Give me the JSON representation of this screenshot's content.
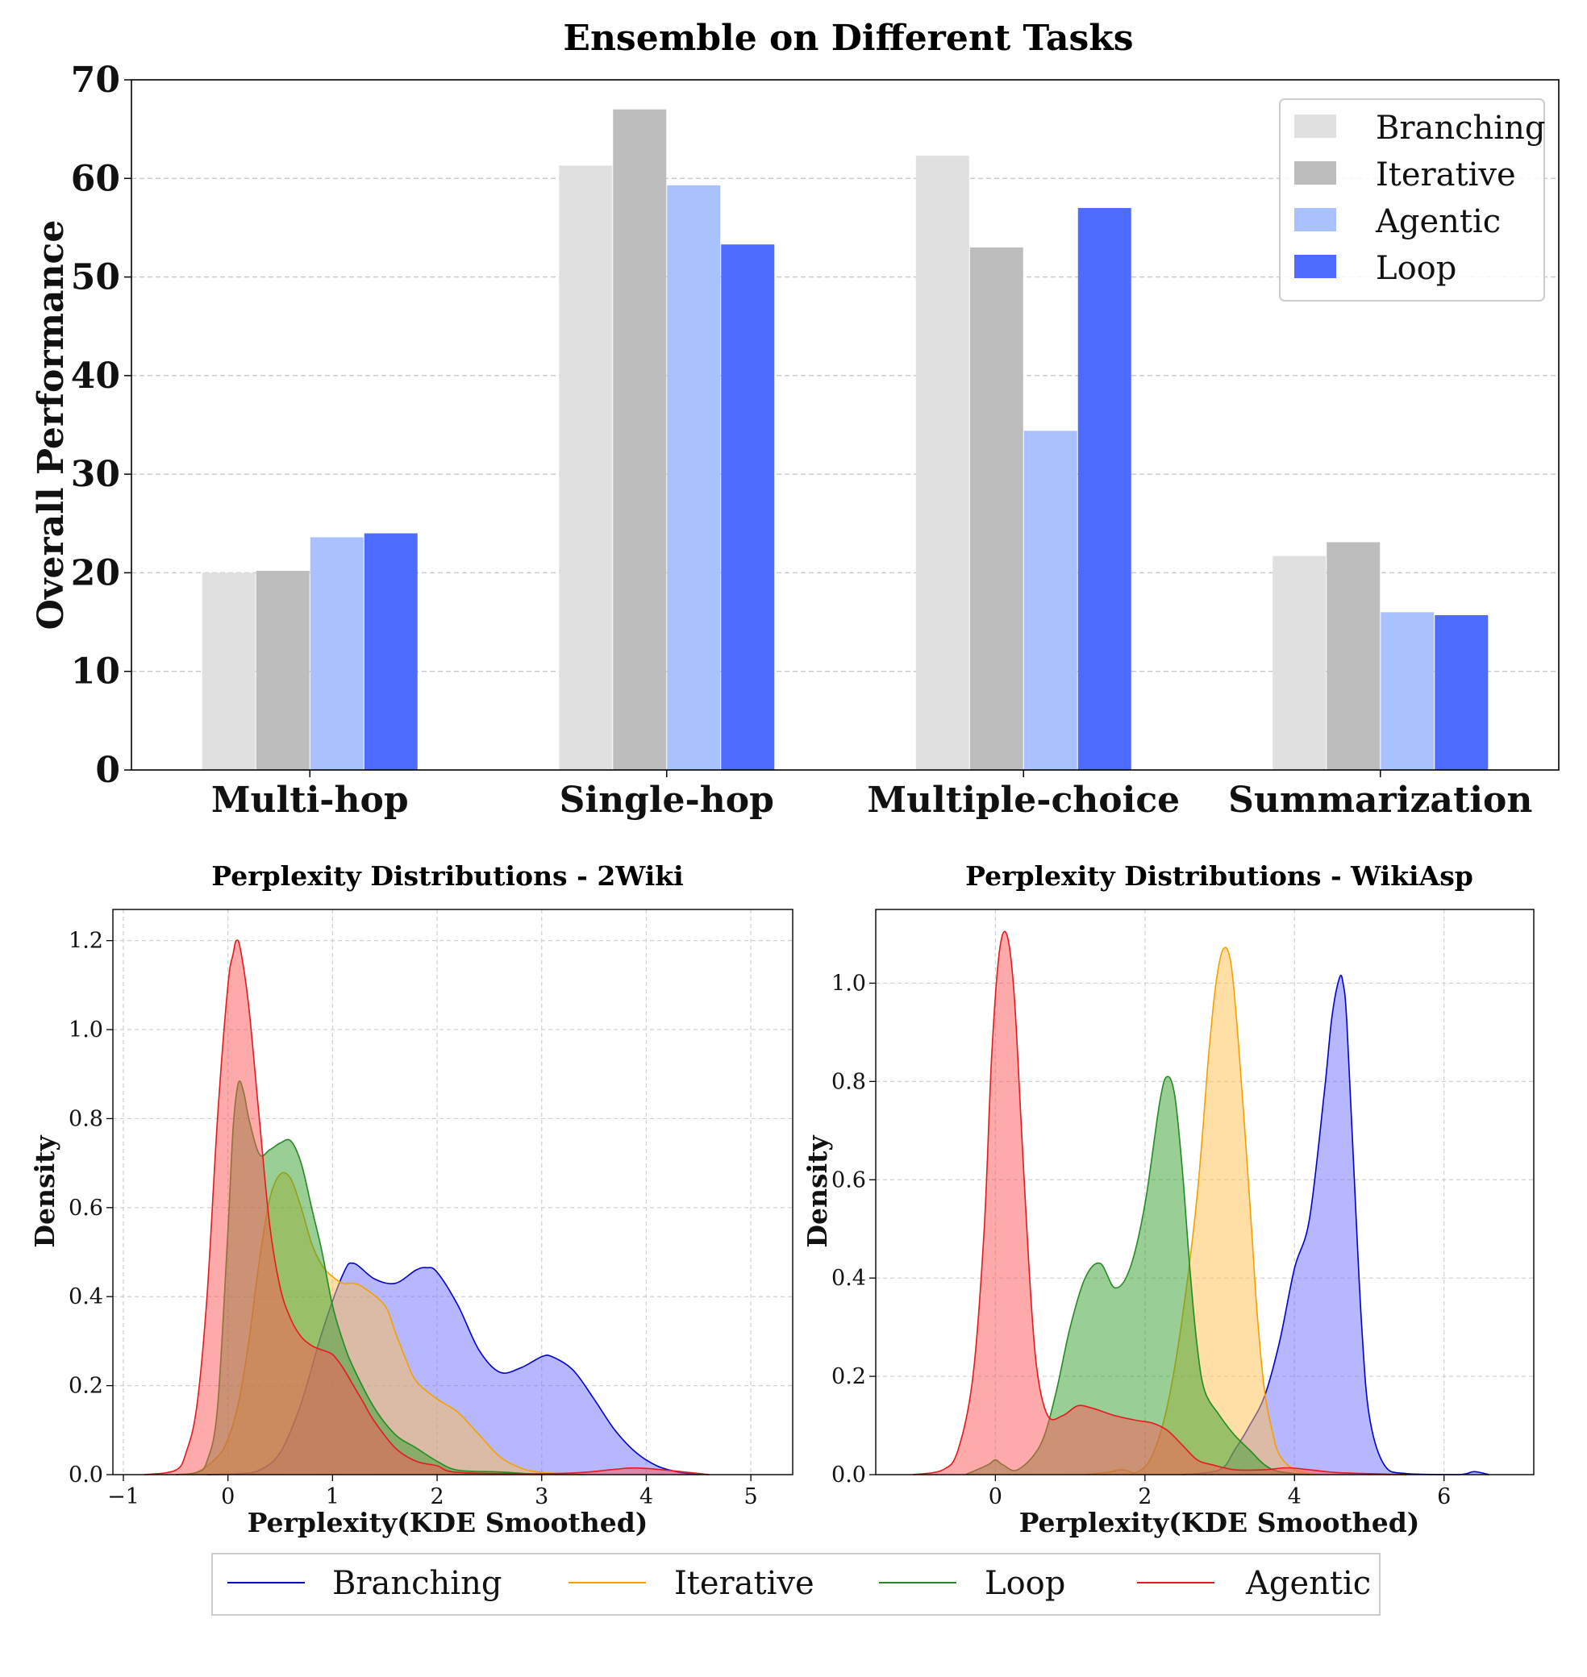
{
  "chart_data": [
    {
      "type": "bar",
      "title": "Ensemble on Different Tasks",
      "xlabel": "",
      "ylabel": "Overall Performance",
      "ylim": [
        0,
        70
      ],
      "yticks": [
        "0",
        "10",
        "20",
        "30",
        "40",
        "50",
        "60",
        "70"
      ],
      "categories": [
        "Multi-hop",
        "Single-hop",
        "Multiple-choice",
        "Summarization"
      ],
      "series": [
        {
          "name": "Branching",
          "color": "#e0e0e0",
          "values": [
            20.0,
            61.3,
            62.3,
            21.7
          ]
        },
        {
          "name": "Iterative",
          "color": "#bdbdbd",
          "values": [
            20.2,
            67.0,
            53.0,
            23.1
          ]
        },
        {
          "name": "Agentic",
          "color": "#aac1ff",
          "values": [
            23.6,
            59.3,
            34.4,
            16.0
          ]
        },
        {
          "name": "Loop",
          "color": "#4d6bff",
          "values": [
            24.0,
            53.3,
            57.0,
            15.7
          ]
        }
      ],
      "grid": true,
      "legend": "top-right"
    },
    {
      "type": "area",
      "title": "Perplexity Distributions - 2Wiki",
      "xlabel": "Perplexity(KDE Smoothed)",
      "ylabel": "Density",
      "xlim": [
        -1.1,
        5.4
      ],
      "ylim": [
        0,
        1.27
      ],
      "xticks": [
        "−1",
        "0",
        "1",
        "2",
        "3",
        "4",
        "5"
      ],
      "yticks": [
        "0.0",
        "0.2",
        "0.4",
        "0.6",
        "0.8",
        "1.0",
        "1.2"
      ],
      "grid": true,
      "series": [
        {
          "name": "Branching",
          "color": "#0000cc",
          "fill": "#7070ff",
          "points": [
            [
              -0.2,
              0
            ],
            [
              0.1,
              0.002
            ],
            [
              0.3,
              0.01
            ],
            [
              0.5,
              0.05
            ],
            [
              0.7,
              0.16
            ],
            [
              0.9,
              0.32
            ],
            [
              1.1,
              0.45
            ],
            [
              1.2,
              0.475
            ],
            [
              1.4,
              0.44
            ],
            [
              1.6,
              0.43
            ],
            [
              1.8,
              0.46
            ],
            [
              1.9,
              0.465
            ],
            [
              2.0,
              0.455
            ],
            [
              2.2,
              0.38
            ],
            [
              2.4,
              0.28
            ],
            [
              2.6,
              0.23
            ],
            [
              2.8,
              0.24
            ],
            [
              3.0,
              0.265
            ],
            [
              3.1,
              0.265
            ],
            [
              3.3,
              0.235
            ],
            [
              3.5,
              0.17
            ],
            [
              3.7,
              0.1
            ],
            [
              3.9,
              0.05
            ],
            [
              4.1,
              0.02
            ],
            [
              4.3,
              0.006
            ],
            [
              4.5,
              0
            ]
          ]
        },
        {
          "name": "Iterative",
          "color": "#f5a000",
          "fill": "#ffc04d",
          "points": [
            [
              -0.5,
              0
            ],
            [
              -0.3,
              0.005
            ],
            [
              -0.1,
              0.04
            ],
            [
              0.0,
              0.08
            ],
            [
              0.1,
              0.16
            ],
            [
              0.2,
              0.3
            ],
            [
              0.3,
              0.48
            ],
            [
              0.4,
              0.62
            ],
            [
              0.5,
              0.675
            ],
            [
              0.6,
              0.665
            ],
            [
              0.7,
              0.6
            ],
            [
              0.8,
              0.52
            ],
            [
              0.9,
              0.47
            ],
            [
              1.0,
              0.445
            ],
            [
              1.1,
              0.43
            ],
            [
              1.2,
              0.43
            ],
            [
              1.3,
              0.42
            ],
            [
              1.5,
              0.38
            ],
            [
              1.6,
              0.32
            ],
            [
              1.7,
              0.26
            ],
            [
              1.8,
              0.21
            ],
            [
              2.0,
              0.17
            ],
            [
              2.2,
              0.14
            ],
            [
              2.4,
              0.09
            ],
            [
              2.6,
              0.04
            ],
            [
              2.8,
              0.015
            ],
            [
              3.0,
              0.005
            ],
            [
              3.4,
              0
            ]
          ]
        },
        {
          "name": "Loop",
          "color": "#228b22",
          "fill": "#33a02c",
          "points": [
            [
              -0.5,
              0
            ],
            [
              -0.3,
              0.005
            ],
            [
              -0.2,
              0.03
            ],
            [
              -0.1,
              0.15
            ],
            [
              0.0,
              0.55
            ],
            [
              0.05,
              0.78
            ],
            [
              0.1,
              0.88
            ],
            [
              0.15,
              0.86
            ],
            [
              0.2,
              0.8
            ],
            [
              0.3,
              0.72
            ],
            [
              0.4,
              0.73
            ],
            [
              0.5,
              0.745
            ],
            [
              0.6,
              0.75
            ],
            [
              0.7,
              0.7
            ],
            [
              0.8,
              0.6
            ],
            [
              0.9,
              0.5
            ],
            [
              1.0,
              0.38
            ],
            [
              1.1,
              0.3
            ],
            [
              1.2,
              0.24
            ],
            [
              1.4,
              0.15
            ],
            [
              1.6,
              0.09
            ],
            [
              1.8,
              0.06
            ],
            [
              2.0,
              0.03
            ],
            [
              2.2,
              0.01
            ],
            [
              2.6,
              0.006
            ],
            [
              3.0,
              0
            ]
          ]
        },
        {
          "name": "Agentic",
          "color": "#e41a1c",
          "fill": "#ff5555",
          "points": [
            [
              -0.8,
              0
            ],
            [
              -0.5,
              0.01
            ],
            [
              -0.4,
              0.05
            ],
            [
              -0.3,
              0.15
            ],
            [
              -0.2,
              0.4
            ],
            [
              -0.1,
              0.8
            ],
            [
              0.0,
              1.1
            ],
            [
              0.05,
              1.17
            ],
            [
              0.08,
              1.2
            ],
            [
              0.12,
              1.18
            ],
            [
              0.2,
              1.05
            ],
            [
              0.3,
              0.8
            ],
            [
              0.4,
              0.56
            ],
            [
              0.5,
              0.42
            ],
            [
              0.6,
              0.35
            ],
            [
              0.7,
              0.31
            ],
            [
              0.8,
              0.29
            ],
            [
              0.9,
              0.28
            ],
            [
              1.0,
              0.27
            ],
            [
              1.1,
              0.24
            ],
            [
              1.2,
              0.2
            ],
            [
              1.3,
              0.16
            ],
            [
              1.4,
              0.12
            ],
            [
              1.6,
              0.06
            ],
            [
              1.8,
              0.03
            ],
            [
              2.0,
              0.02
            ],
            [
              2.2,
              0.005
            ],
            [
              3.0,
              0.002
            ],
            [
              3.4,
              0.005
            ],
            [
              3.7,
              0.012
            ],
            [
              3.9,
              0.015
            ],
            [
              4.2,
              0.01
            ],
            [
              4.6,
              0
            ]
          ]
        }
      ]
    },
    {
      "type": "area",
      "title": "Perplexity Distributions - WikiAsp",
      "xlabel": "Perplexity(KDE Smoothed)",
      "ylabel": "Density",
      "xlim": [
        -1.6,
        7.2
      ],
      "ylim": [
        0,
        1.15
      ],
      "xticks": [
        "0",
        "2",
        "4",
        "6"
      ],
      "yticks": [
        "0.0",
        "0.2",
        "0.4",
        "0.6",
        "0.8",
        "1.0"
      ],
      "grid": true,
      "series": [
        {
          "name": "Branching",
          "color": "#0000cc",
          "fill": "#7070ff",
          "points": [
            [
              2.5,
              0
            ],
            [
              3.0,
              0.01
            ],
            [
              3.2,
              0.05
            ],
            [
              3.4,
              0.1
            ],
            [
              3.6,
              0.16
            ],
            [
              3.8,
              0.27
            ],
            [
              4.0,
              0.42
            ],
            [
              4.2,
              0.52
            ],
            [
              4.4,
              0.78
            ],
            [
              4.5,
              0.93
            ],
            [
              4.6,
              1.01
            ],
            [
              4.65,
              1.0
            ],
            [
              4.7,
              0.92
            ],
            [
              4.8,
              0.6
            ],
            [
              4.9,
              0.3
            ],
            [
              5.0,
              0.12
            ],
            [
              5.2,
              0.02
            ],
            [
              5.5,
              0.002
            ],
            [
              6.2,
              0
            ],
            [
              6.4,
              0.006
            ],
            [
              6.6,
              0
            ]
          ]
        },
        {
          "name": "Iterative",
          "color": "#f5a000",
          "fill": "#ffc04d",
          "points": [
            [
              1.2,
              0
            ],
            [
              1.5,
              0.005
            ],
            [
              1.7,
              0.01
            ],
            [
              1.9,
              0.005
            ],
            [
              2.1,
              0.04
            ],
            [
              2.3,
              0.14
            ],
            [
              2.5,
              0.32
            ],
            [
              2.7,
              0.57
            ],
            [
              2.85,
              0.85
            ],
            [
              2.95,
              1.0
            ],
            [
              3.05,
              1.07
            ],
            [
              3.15,
              1.04
            ],
            [
              3.25,
              0.88
            ],
            [
              3.4,
              0.56
            ],
            [
              3.5,
              0.33
            ],
            [
              3.6,
              0.17
            ],
            [
              3.7,
              0.09
            ],
            [
              3.8,
              0.04
            ],
            [
              4.0,
              0.01
            ],
            [
              4.3,
              0
            ]
          ]
        },
        {
          "name": "Loop",
          "color": "#228b22",
          "fill": "#33a02c",
          "points": [
            [
              -0.4,
              0
            ],
            [
              -0.1,
              0.02
            ],
            [
              0.0,
              0.03
            ],
            [
              0.1,
              0.02
            ],
            [
              0.3,
              0.01
            ],
            [
              0.6,
              0.06
            ],
            [
              0.8,
              0.16
            ],
            [
              1.0,
              0.3
            ],
            [
              1.2,
              0.4
            ],
            [
              1.4,
              0.43
            ],
            [
              1.6,
              0.38
            ],
            [
              1.8,
              0.42
            ],
            [
              2.0,
              0.55
            ],
            [
              2.2,
              0.76
            ],
            [
              2.3,
              0.81
            ],
            [
              2.4,
              0.77
            ],
            [
              2.5,
              0.62
            ],
            [
              2.6,
              0.42
            ],
            [
              2.7,
              0.26
            ],
            [
              2.8,
              0.17
            ],
            [
              3.0,
              0.12
            ],
            [
              3.2,
              0.08
            ],
            [
              3.4,
              0.05
            ],
            [
              3.6,
              0.02
            ],
            [
              3.8,
              0.006
            ],
            [
              4.2,
              0
            ]
          ]
        },
        {
          "name": "Agentic",
          "color": "#e41a1c",
          "fill": "#ff5555",
          "points": [
            [
              -1.1,
              0
            ],
            [
              -0.7,
              0.01
            ],
            [
              -0.5,
              0.05
            ],
            [
              -0.3,
              0.2
            ],
            [
              -0.15,
              0.5
            ],
            [
              -0.05,
              0.85
            ],
            [
              0.05,
              1.06
            ],
            [
              0.15,
              1.1
            ],
            [
              0.25,
              0.98
            ],
            [
              0.35,
              0.7
            ],
            [
              0.45,
              0.42
            ],
            [
              0.55,
              0.22
            ],
            [
              0.7,
              0.12
            ],
            [
              0.9,
              0.12
            ],
            [
              1.1,
              0.14
            ],
            [
              1.3,
              0.135
            ],
            [
              1.6,
              0.12
            ],
            [
              1.9,
              0.11
            ],
            [
              2.1,
              0.105
            ],
            [
              2.3,
              0.09
            ],
            [
              2.5,
              0.06
            ],
            [
              2.7,
              0.03
            ],
            [
              2.9,
              0.02
            ],
            [
              3.2,
              0.01
            ],
            [
              3.6,
              0.01
            ],
            [
              3.9,
              0.014
            ],
            [
              4.2,
              0.01
            ],
            [
              4.6,
              0.004
            ],
            [
              5.5,
              0
            ]
          ]
        }
      ]
    }
  ],
  "legend_bottom": [
    "Branching",
    "Iterative",
    "Loop",
    "Agentic"
  ]
}
